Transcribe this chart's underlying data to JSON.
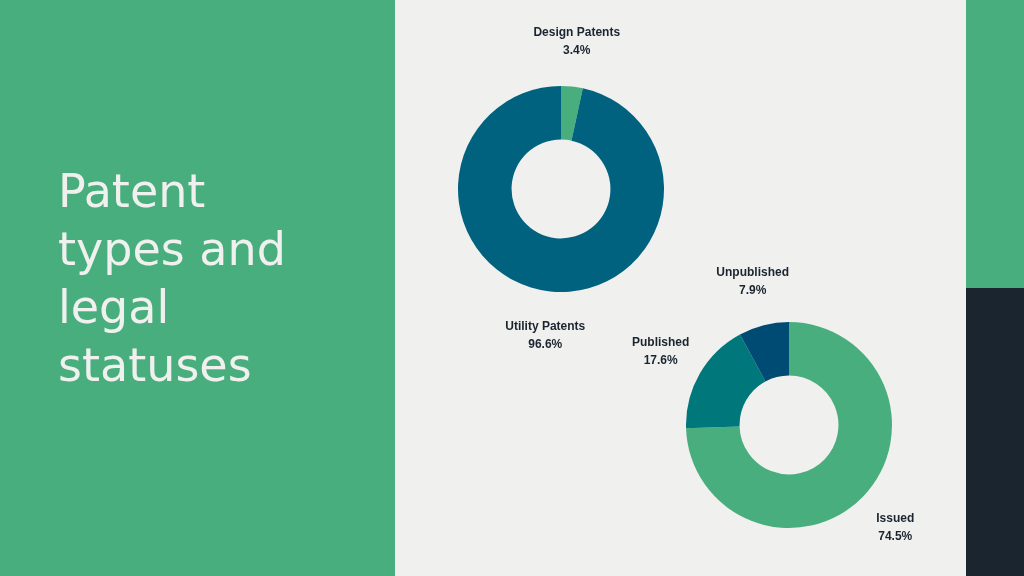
{
  "chart_data": [
    {
      "type": "donut",
      "title": "Patent types and legal statuses",
      "categories": [
        "Design Patents",
        "Utility Patents"
      ],
      "values": [
        3.4,
        96.6
      ],
      "colors": [
        "#48ae7e",
        "#00627f"
      ],
      "value_labels": [
        "3.4%",
        "96.6%"
      ],
      "legend": false
    },
    {
      "type": "donut",
      "categories": [
        "Issued",
        "Published",
        "Unpublished"
      ],
      "values": [
        74.5,
        17.6,
        7.9
      ],
      "colors": [
        "#48ae7e",
        "#00777a",
        "#004b73"
      ],
      "value_labels": [
        "74.5%",
        "17.6%",
        "7.9%"
      ],
      "legend": false
    }
  ]
}
